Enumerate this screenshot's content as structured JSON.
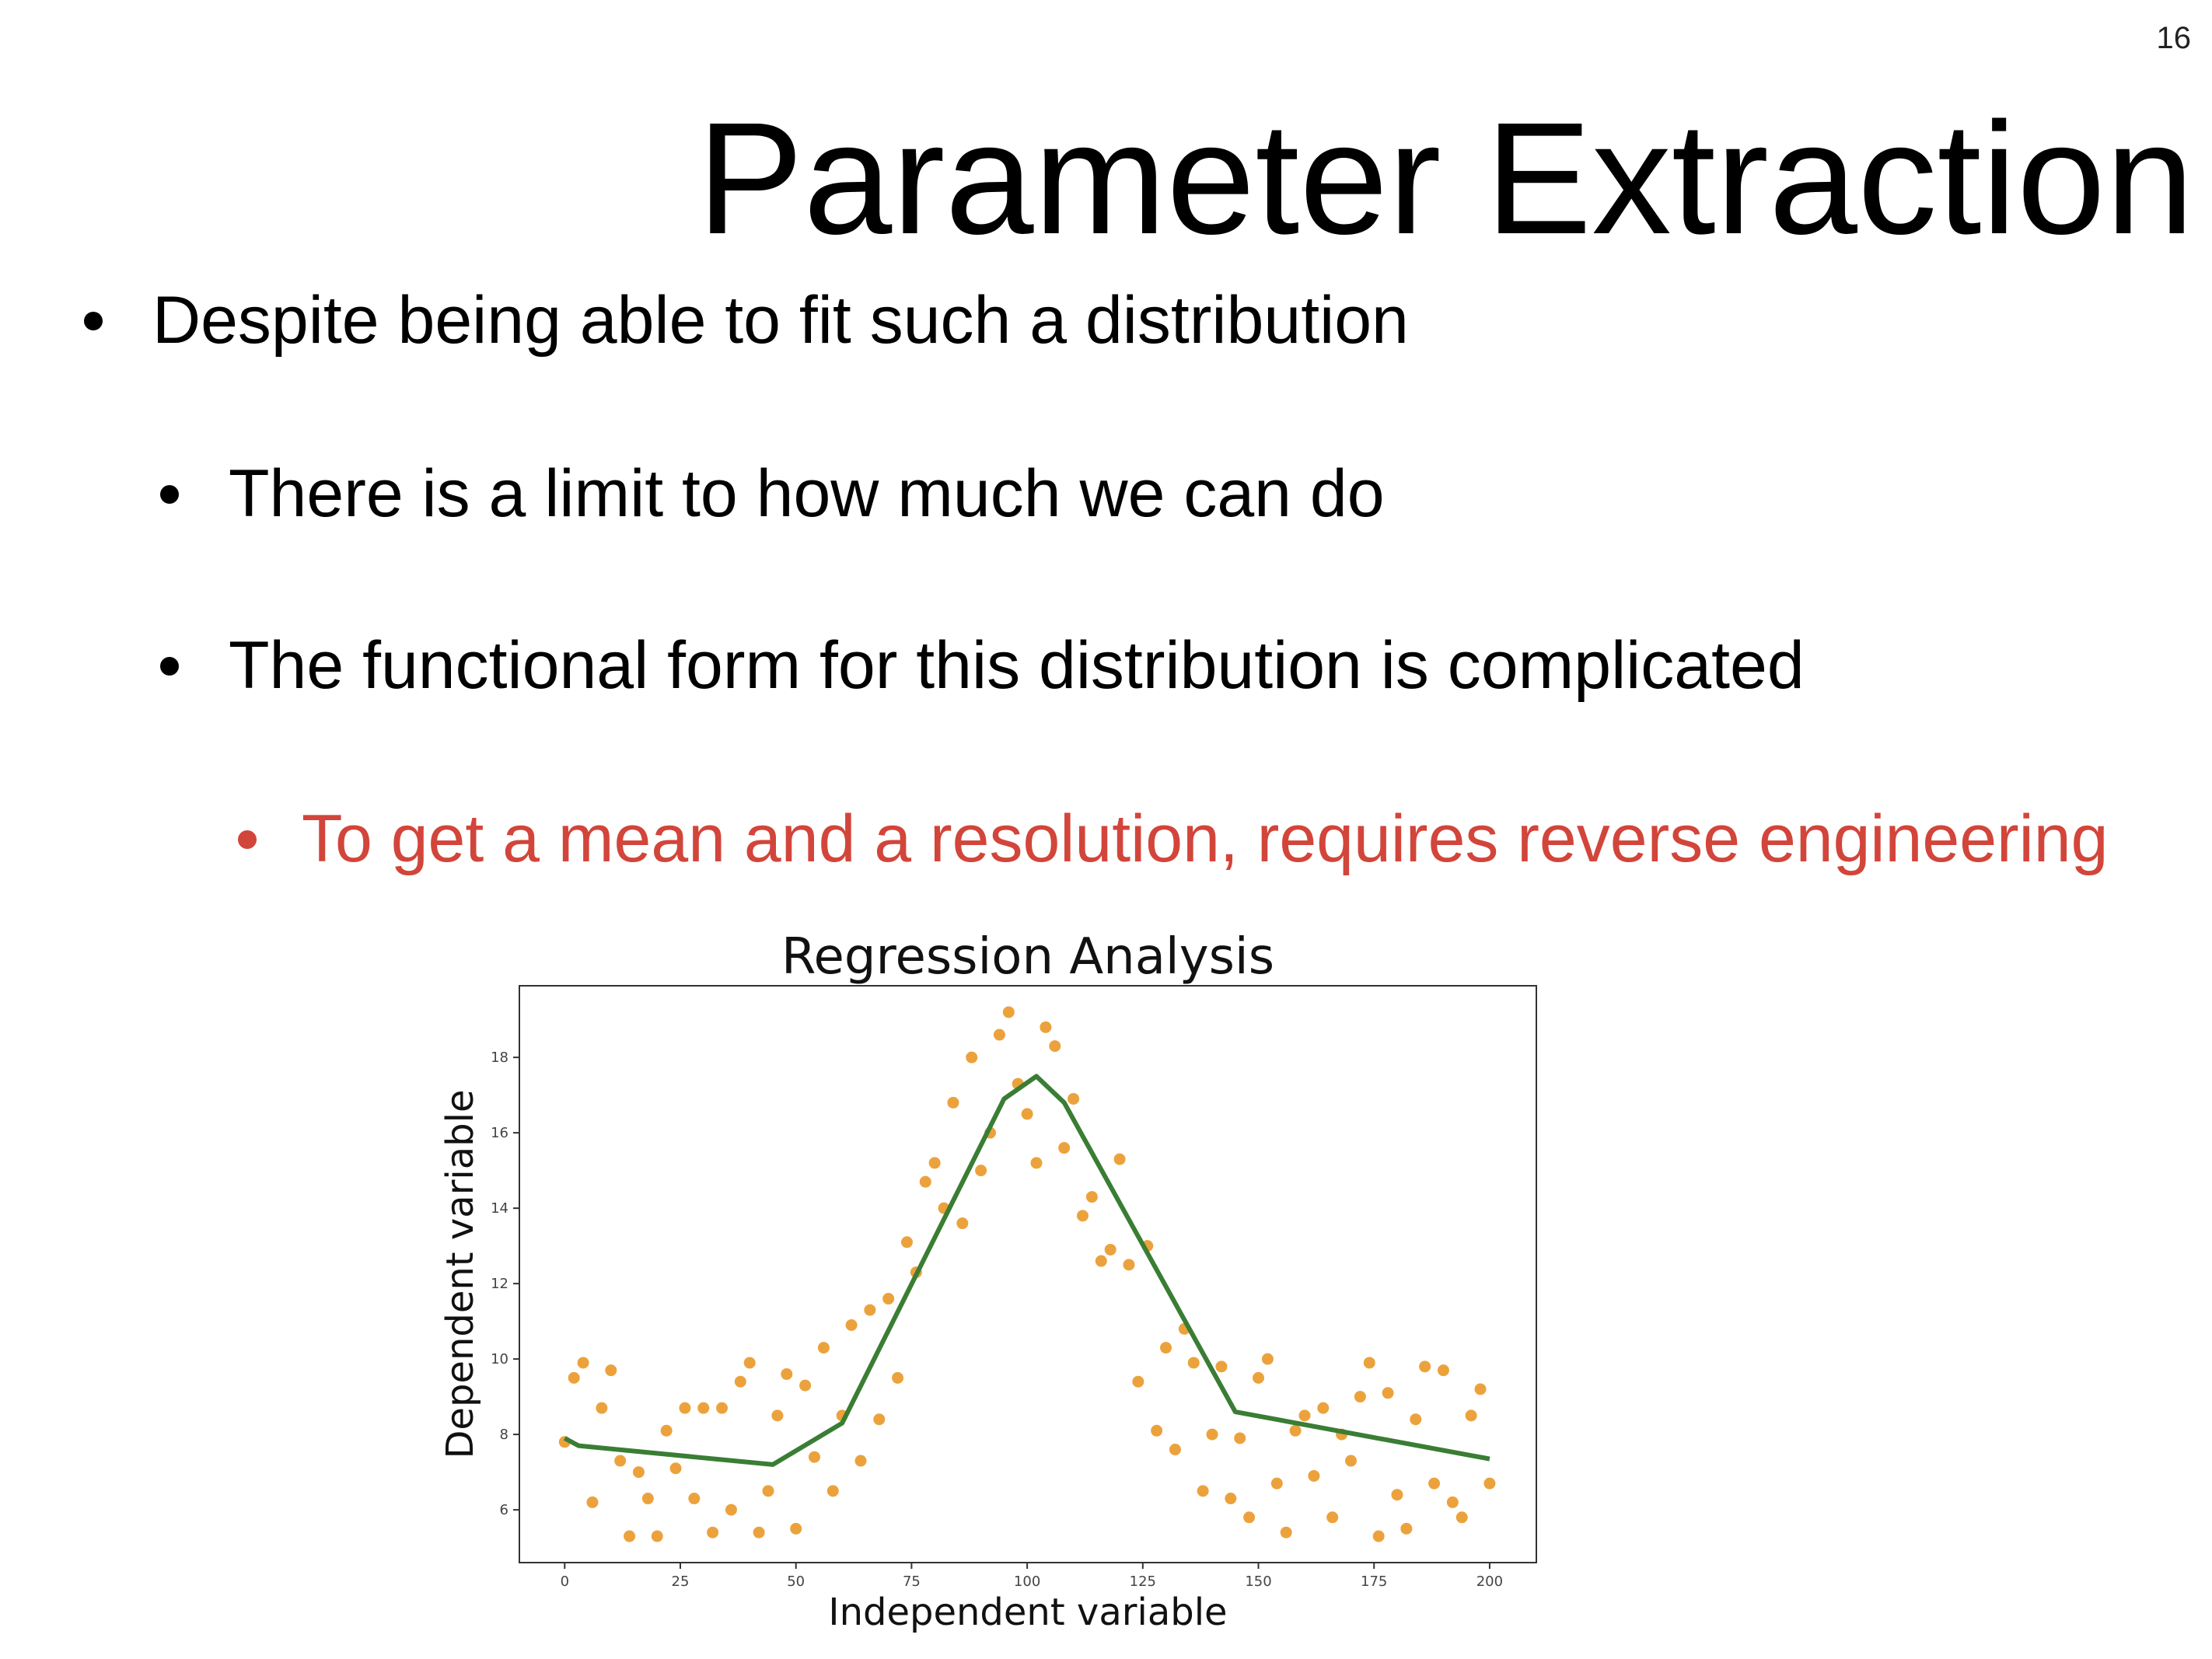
{
  "slide": {
    "number": "16",
    "title": "Parameter Extraction",
    "bullets": [
      {
        "text": "Despite being able to fit such a distribution",
        "level": 1
      },
      {
        "text": "There is a limit to how much we can do",
        "level": 2
      },
      {
        "text": "The functional form for this distribution is complicated",
        "level": 2
      },
      {
        "text": "To get a mean and a resolution, requires reverse engineering",
        "level": 3,
        "color": "#d2453a"
      }
    ]
  },
  "chart_data": {
    "type": "scatter",
    "title": "Regression Analysis",
    "x_label": "Independent variable",
    "y_label": "Dependent variable",
    "xlim": [
      -9.8,
      210.1
    ],
    "ylim": [
      4.6,
      19.9
    ],
    "xticks": [
      0,
      25,
      50,
      75,
      100,
      125,
      150,
      175,
      200
    ],
    "yticks": [
      6,
      8,
      10,
      12,
      14,
      16,
      18
    ],
    "series": [
      {
        "type": "scatter",
        "color": "#eca23c",
        "x": [
          0,
          2,
          4,
          6,
          8,
          10,
          12,
          14,
          16,
          18,
          20,
          22,
          24,
          26,
          28,
          30,
          32,
          34,
          36,
          38,
          40,
          42,
          44,
          46,
          48,
          50,
          52,
          54,
          56,
          58,
          60,
          62,
          64,
          66,
          68,
          70,
          72,
          74,
          76,
          78,
          80,
          82,
          84,
          86,
          88,
          90,
          92,
          94,
          96,
          98,
          100,
          102,
          104,
          106,
          108,
          110,
          112,
          114,
          116,
          118,
          120,
          122,
          124,
          126,
          128,
          130,
          132,
          134,
          136,
          138,
          140,
          142,
          144,
          146,
          148,
          150,
          152,
          154,
          156,
          158,
          160,
          162,
          164,
          166,
          168,
          170,
          172,
          174,
          176,
          178,
          180,
          182,
          184,
          186,
          188,
          190,
          192,
          194,
          196,
          198,
          200
        ],
        "values": [
          7.8,
          9.5,
          9.9,
          6.2,
          8.7,
          9.7,
          7.3,
          5.3,
          7.0,
          6.3,
          5.3,
          8.1,
          7.1,
          8.7,
          6.3,
          8.7,
          5.4,
          8.7,
          6.0,
          9.4,
          9.9,
          5.4,
          6.5,
          8.5,
          9.6,
          5.5,
          9.3,
          7.4,
          10.3,
          6.5,
          8.5,
          10.9,
          7.3,
          11.3,
          8.4,
          11.6,
          9.5,
          13.1,
          12.3,
          14.7,
          15.2,
          14.0,
          16.8,
          13.6,
          18.0,
          15.0,
          16.0,
          18.6,
          19.2,
          17.3,
          16.5,
          15.2,
          18.8,
          18.3,
          15.6,
          16.9,
          13.8,
          14.3,
          12.6,
          12.9,
          15.3,
          12.5,
          9.4,
          13.0,
          8.1,
          10.3,
          7.6,
          10.8,
          9.9,
          6.5,
          8.0,
          9.8,
          6.3,
          7.9,
          5.8,
          9.5,
          10.0,
          6.7,
          5.4,
          8.1,
          8.5,
          6.9,
          8.7,
          5.8,
          8.0,
          7.3,
          9.0,
          9.9,
          5.3,
          9.1,
          6.4,
          5.5,
          8.4,
          9.8,
          6.7,
          9.7,
          6.2,
          5.8,
          8.5,
          9.2,
          6.7
        ]
      },
      {
        "type": "line",
        "color": "#3a7d34",
        "x": [
          0,
          3,
          45,
          60,
          95,
          102,
          108,
          145,
          200
        ],
        "values": [
          7.9,
          7.7,
          7.2,
          8.3,
          16.9,
          17.5,
          16.8,
          8.6,
          7.35
        ]
      }
    ]
  }
}
